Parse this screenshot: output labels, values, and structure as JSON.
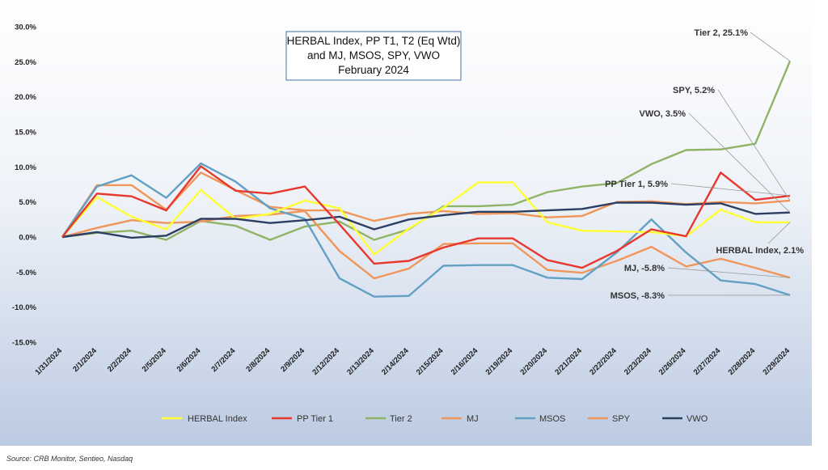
{
  "chart_data": {
    "type": "line",
    "title": [
      "HERBAL Index, PP T1, T2  (Eq Wtd)",
      "and MJ, MSOS, SPY, VWO",
      "February 2024"
    ],
    "x": [
      "1/31/2024",
      "2/1/2024",
      "2/2/2024",
      "2/5/2024",
      "2/6/2024",
      "2/7/2024",
      "2/8/2024",
      "2/9/2024",
      "2/12/2024",
      "2/13/2024",
      "2/14/2024",
      "2/15/2024",
      "2/16/2024",
      "2/19/2024",
      "2/20/2024",
      "2/21/2024",
      "2/22/2024",
      "2/23/2024",
      "2/26/2024",
      "2/27/2024",
      "2/28/2024",
      "2/29/2024"
    ],
    "ylim": [
      -15,
      30
    ],
    "yticks": [
      "-15.0%",
      "-10.0%",
      "-5.0%",
      "0.0%",
      "5.0%",
      "10.0%",
      "15.0%",
      "20.0%",
      "25.0%",
      "30.0%"
    ],
    "grid": false,
    "legend_position": "bottom",
    "series": [
      {
        "name": "HERBAL Index",
        "color": "#ffff33",
        "values": [
          0,
          5.7,
          2.9,
          1.1,
          6.7,
          2.6,
          3.3,
          5.2,
          4.1,
          -2.5,
          1.2,
          4.2,
          7.8,
          7.8,
          2.1,
          0.9,
          0.8,
          0.7,
          0.1,
          3.9,
          2.1,
          2.1
        ]
      },
      {
        "name": "PP Tier 1",
        "color": "#e8382e",
        "values": [
          0,
          6.2,
          5.8,
          3.8,
          10.1,
          6.6,
          6.2,
          7.2,
          1.8,
          -3.8,
          -3.4,
          -1.5,
          -0.2,
          -0.2,
          -3.3,
          -4.4,
          -2.0,
          1.1,
          0.1,
          9.2,
          5.3,
          5.9
        ]
      },
      {
        "name": "Tier 2",
        "color": "#8fb465",
        "values": [
          0,
          0.6,
          0.9,
          -0.4,
          2.3,
          1.6,
          -0.4,
          1.5,
          2.2,
          -0.4,
          1.1,
          4.4,
          4.4,
          4.6,
          6.4,
          7.2,
          7.7,
          10.4,
          12.4,
          12.5,
          13.3,
          25.1
        ]
      },
      {
        "name": "MJ",
        "color": "#f0965a",
        "values": [
          0,
          1.3,
          2.4,
          2.0,
          2.2,
          3.0,
          3.2,
          3.7,
          -2.0,
          -5.9,
          -4.5,
          -1.0,
          -0.9,
          -0.9,
          -4.7,
          -5.1,
          -3.4,
          -1.4,
          -4.2,
          -3.1,
          -4.4,
          -5.8
        ]
      },
      {
        "name": "MSOS",
        "color": "#62a0c4",
        "values": [
          0,
          7.2,
          8.8,
          5.6,
          10.5,
          7.9,
          4.1,
          2.6,
          -5.9,
          -8.5,
          -8.4,
          -4.1,
          -4.0,
          -4.0,
          -5.8,
          -6.0,
          -2.2,
          2.5,
          -2.2,
          -6.2,
          -6.7,
          -8.3
        ]
      },
      {
        "name": "SPY",
        "color": "#f0965a",
        "values": [
          0,
          7.4,
          7.4,
          3.9,
          9.2,
          6.7,
          4.3,
          3.8,
          3.8,
          2.3,
          3.3,
          3.7,
          3.3,
          3.4,
          2.8,
          3.0,
          5.0,
          5.1,
          4.7,
          5.0,
          4.8,
          5.2
        ]
      },
      {
        "name": "VWO",
        "color": "#2d3e63",
        "values": [
          0,
          0.7,
          -0.1,
          0.2,
          2.6,
          2.6,
          2.0,
          2.4,
          2.9,
          1.1,
          2.5,
          3.1,
          3.6,
          3.6,
          3.8,
          4.0,
          4.9,
          4.9,
          4.6,
          4.8,
          3.3,
          3.5
        ]
      }
    ],
    "annotations": [
      {
        "text": "Tier 2, 25.1%",
        "series": "Tier 2"
      },
      {
        "text": "SPY, 5.2%",
        "series": "SPY"
      },
      {
        "text": "VWO, 3.5%",
        "series": "VWO"
      },
      {
        "text": "PP Tier 1, 5.9%",
        "series": "PP Tier 1"
      },
      {
        "text": "HERBAL Index, 2.1%",
        "series": "HERBAL Index"
      },
      {
        "text": "MJ, -5.8%",
        "series": "MJ"
      },
      {
        "text": "MSOS, -8.3%",
        "series": "MSOS"
      }
    ]
  },
  "source": "Source: CRB Monitor, Sentieo, Nasdaq"
}
